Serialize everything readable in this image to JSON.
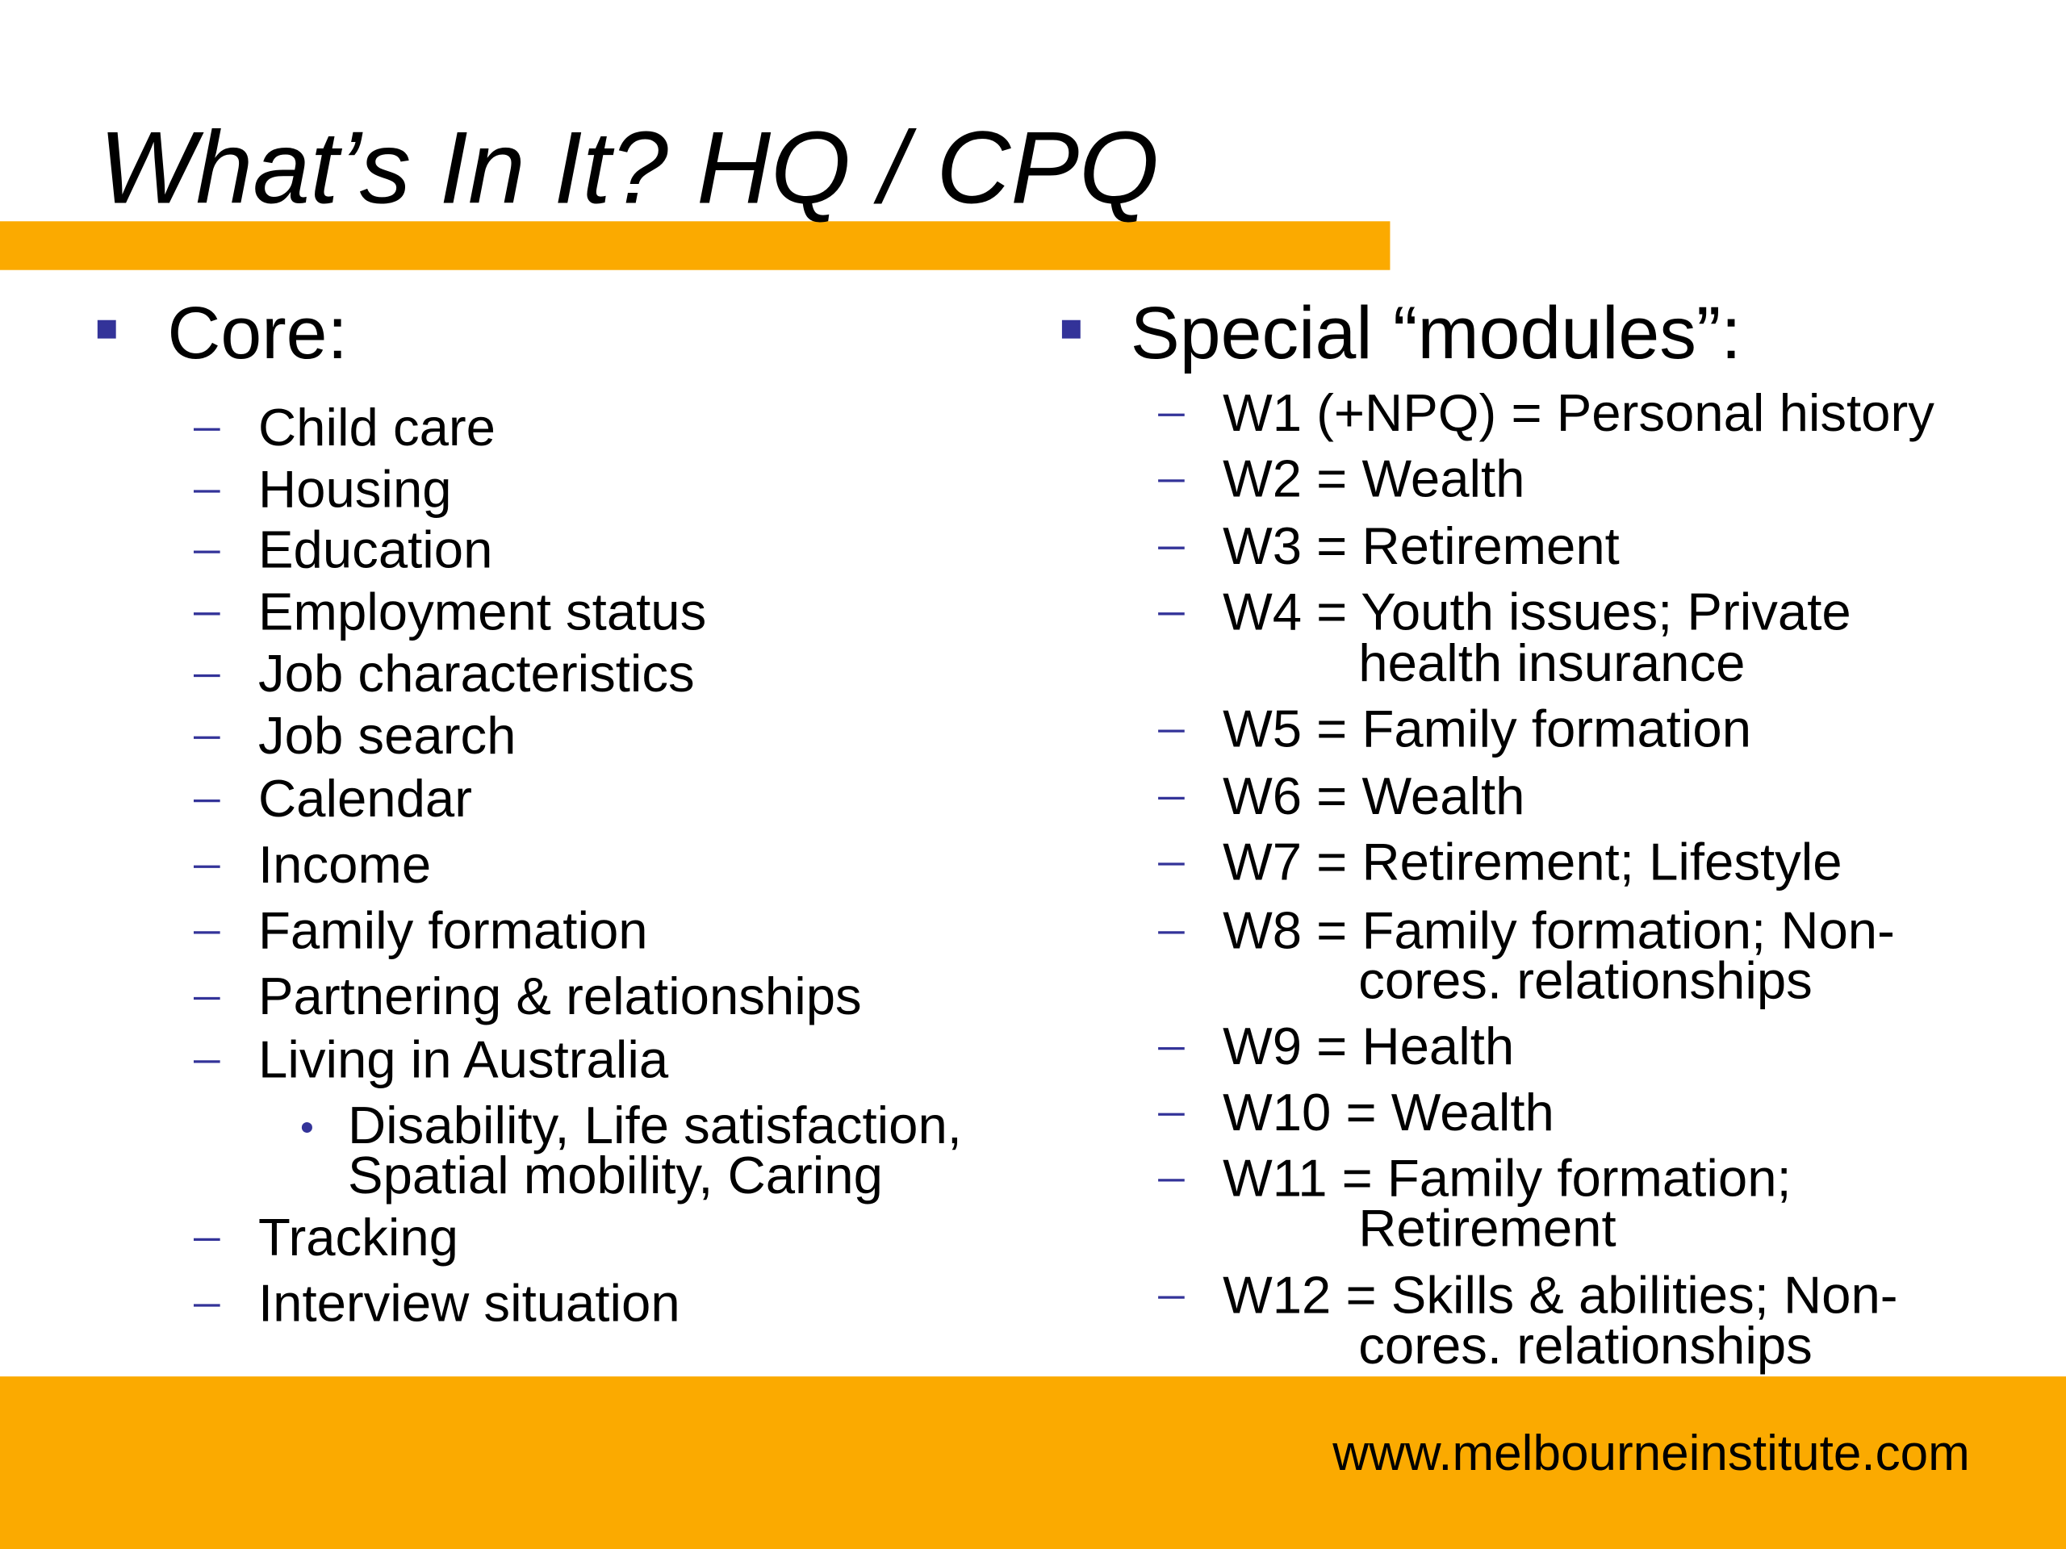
{
  "title": "What’s In It? HQ / CPQ",
  "left": {
    "heading": "Core:",
    "items": [
      {
        "text": "Child care"
      },
      {
        "text": "Housing"
      },
      {
        "text": "Education"
      },
      {
        "text": "Employment status"
      },
      {
        "text": "Job characteristics"
      },
      {
        "text": "Job search"
      },
      {
        "text": "Calendar"
      },
      {
        "text": "Income"
      },
      {
        "text": "Family formation"
      },
      {
        "text": "Partnering & relationships"
      },
      {
        "text": "Living in Australia",
        "sub": [
          [
            "Disability, Life satisfaction,",
            "Spatial mobility, Caring"
          ]
        ]
      },
      {
        "text": "Tracking"
      },
      {
        "text": "Interview situation"
      }
    ]
  },
  "right": {
    "heading": "Special “modules”:",
    "items": [
      {
        "lines": [
          "W1 (+NPQ) = Personal history"
        ]
      },
      {
        "lines": [
          "W2 = Wealth"
        ]
      },
      {
        "lines": [
          "W3 = Retirement"
        ]
      },
      {
        "lines": [
          "W4 = Youth issues; Private",
          "health insurance"
        ]
      },
      {
        "lines": [
          "W5 = Family formation"
        ]
      },
      {
        "lines": [
          "W6 = Wealth"
        ]
      },
      {
        "lines": [
          "W7 = Retirement; Lifestyle"
        ]
      },
      {
        "lines": [
          "W8 = Family formation; Non-",
          "cores. relationships"
        ]
      },
      {
        "lines": [
          "W9 = Health"
        ]
      },
      {
        "lines": [
          "W10 = Wealth"
        ]
      },
      {
        "lines": [
          "W11 = Family formation;",
          "Retirement"
        ]
      },
      {
        "lines": [
          "W12 = Skills & abilities; Non-",
          "cores. relationships"
        ]
      }
    ]
  },
  "footer": "www.melbourneinstitute.com"
}
